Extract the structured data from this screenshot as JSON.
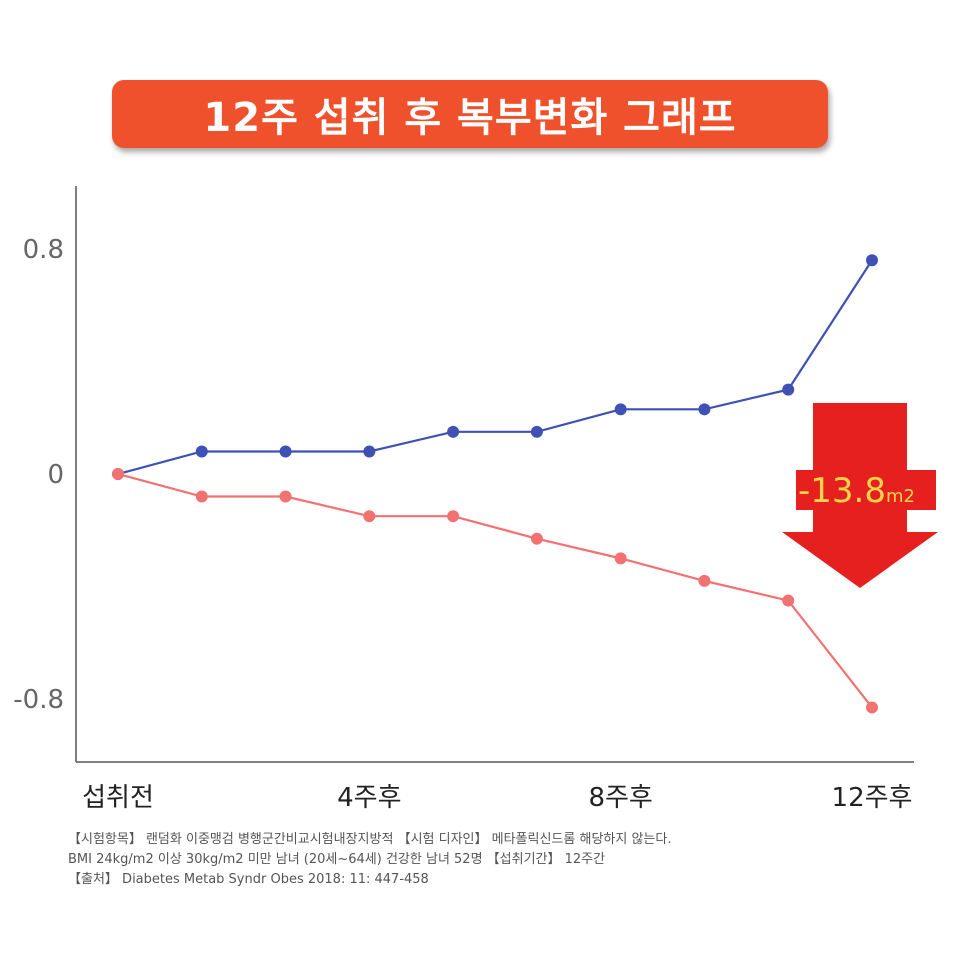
{
  "title": "12주 섭취 후 복부변화 그래프",
  "colors": {
    "title_bg": "#f0512d",
    "series_blue": "#3f51b5",
    "series_red": "#f27272",
    "arrow": "#e6201f",
    "callout_text": "#f5d44a",
    "axis": "#555555"
  },
  "callout": {
    "value": "-13.8",
    "unit": "m2"
  },
  "chart_data": {
    "type": "line",
    "x": [
      0,
      1,
      2,
      3,
      4,
      5,
      6,
      7,
      8,
      9
    ],
    "x_tick_labels": [
      {
        "x": 0,
        "label": "섭취전"
      },
      {
        "x": 3,
        "label": "4주후"
      },
      {
        "x": 6,
        "label": "8주후"
      },
      {
        "x": 9,
        "label": "12주후"
      }
    ],
    "y_tick_labels": [
      {
        "y": 0.8,
        "label": "0.8"
      },
      {
        "y": 0,
        "label": "0"
      },
      {
        "y": -0.8,
        "label": "-0.8"
      }
    ],
    "ylim": [
      -1.15,
      1.1
    ],
    "grid": false,
    "series": [
      {
        "color": "#3f51b5",
        "values": [
          0,
          0.08,
          0.08,
          0.08,
          0.15,
          0.15,
          0.23,
          0.23,
          0.3,
          0.76
        ]
      },
      {
        "color": "#f27272",
        "values": [
          0,
          -0.08,
          -0.08,
          -0.15,
          -0.15,
          -0.23,
          -0.3,
          -0.38,
          -0.45,
          -0.83
        ]
      }
    ]
  },
  "footnotes": [
    "【시험항목】 랜덤화 이중맹검 병행군간비교시험내장지방적 【시험 디자인】 메타폴릭신드롬 해당하지 않는다.",
    "BMI 24kg/m2 이상 30kg/m2 미만 남녀 (20세~64세) 건강한 남녀 52명 【섭취기간】 12주간",
    "【출처】 Diabetes Metab Syndr Obes 2018: 11: 447-458"
  ]
}
